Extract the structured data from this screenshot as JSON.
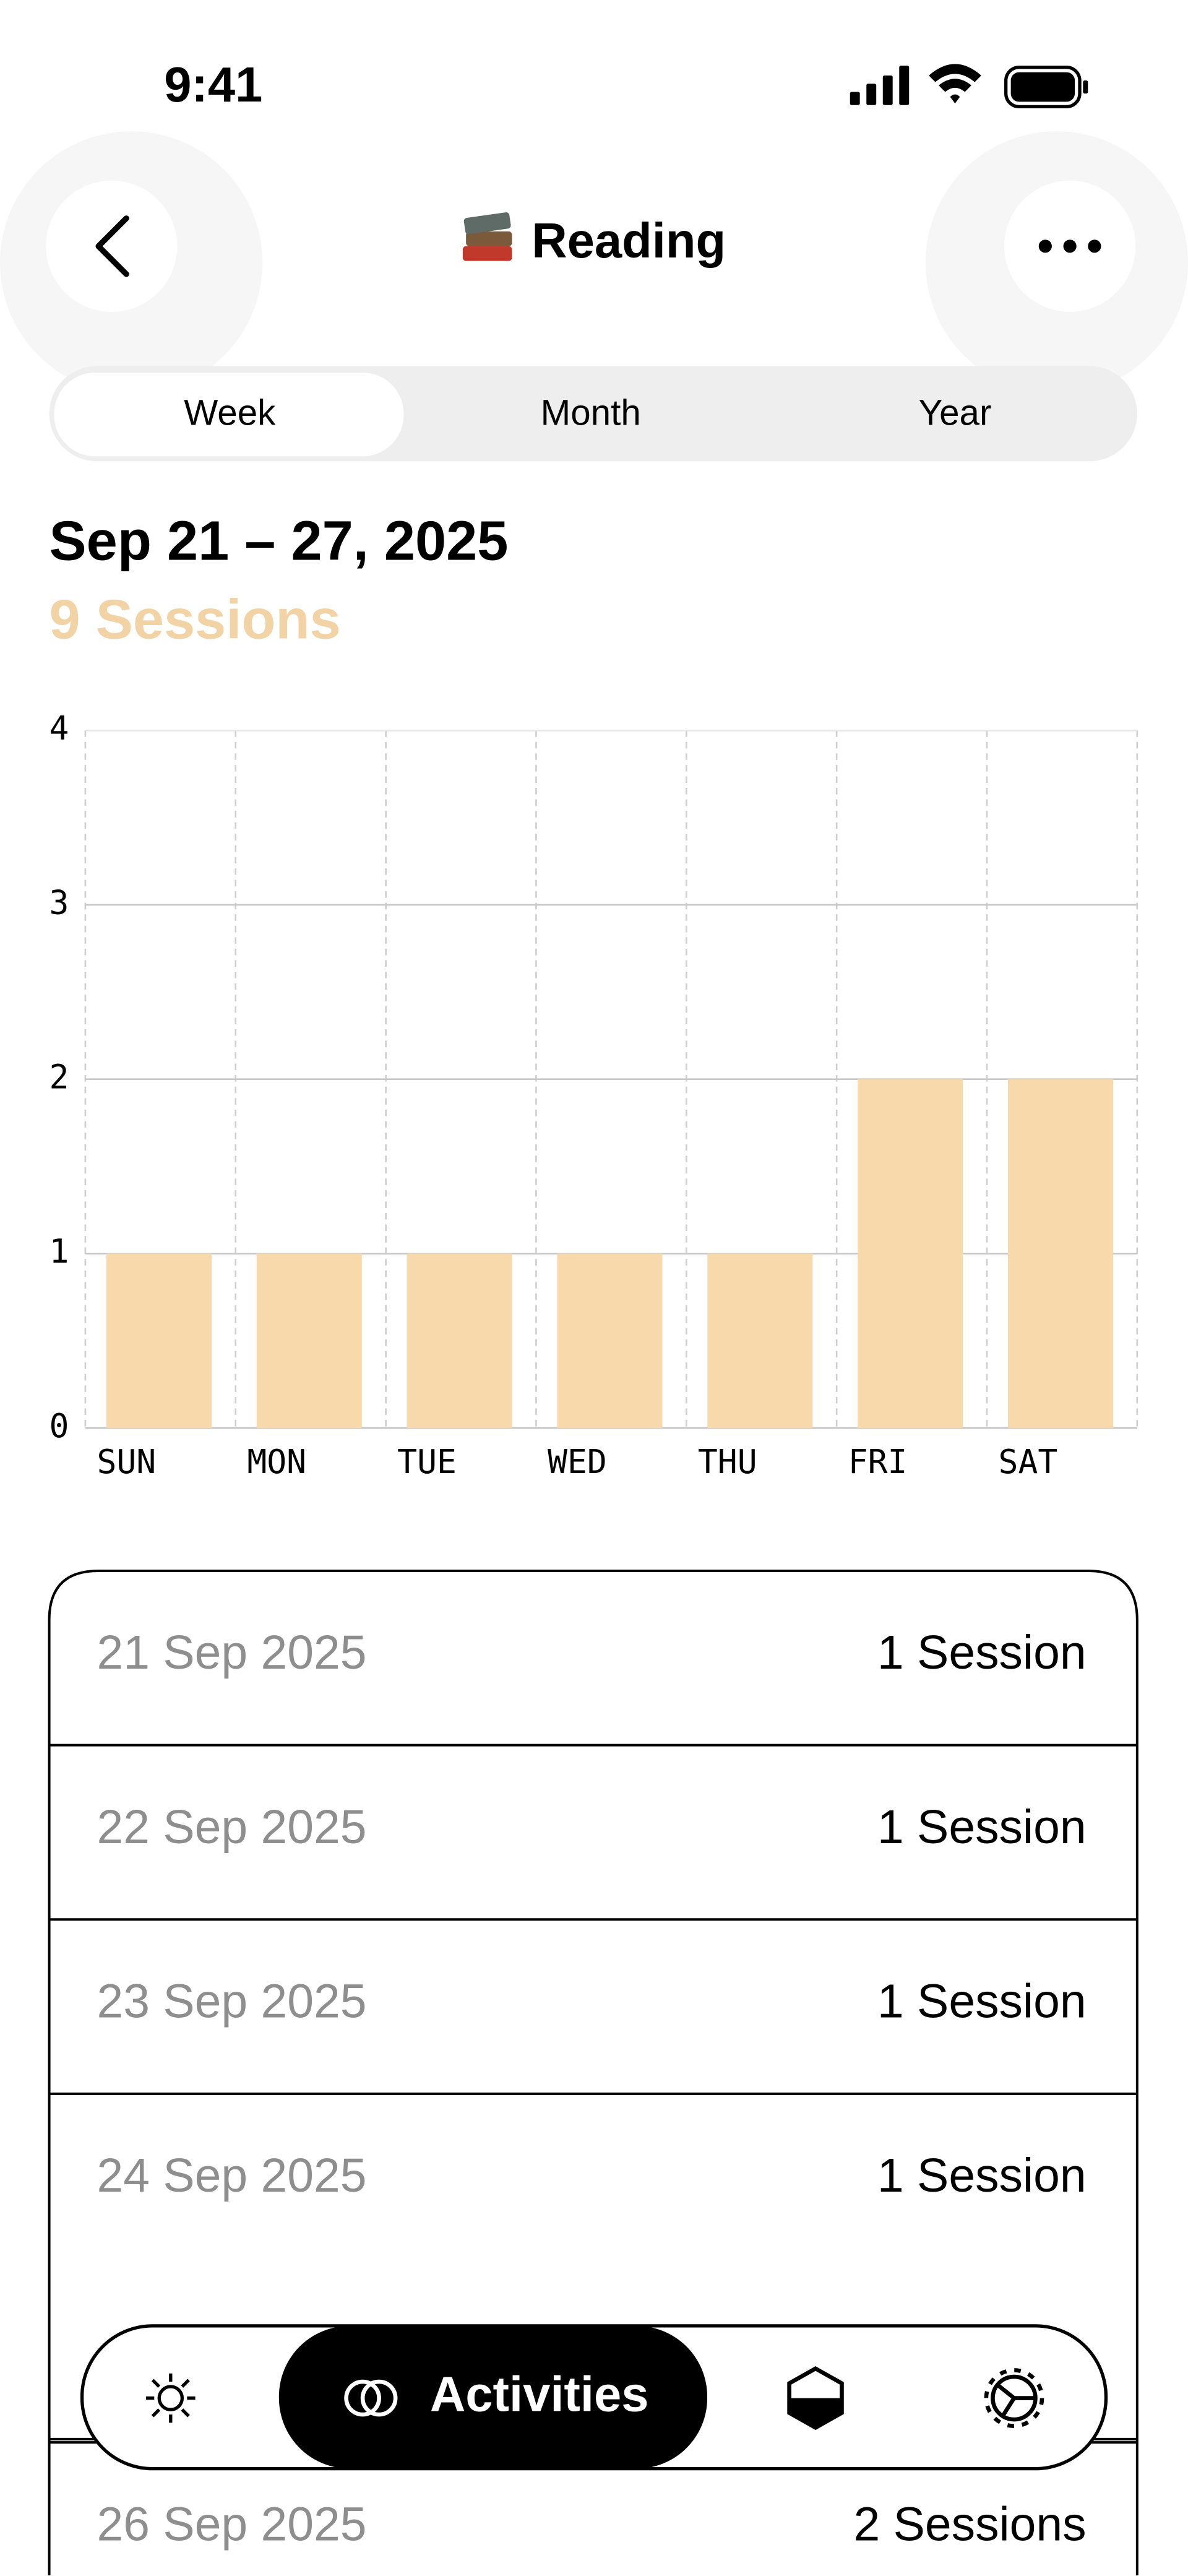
{
  "status_bar": {
    "time": "9:41"
  },
  "header": {
    "title": "Reading"
  },
  "tabs": [
    "Week",
    "Month",
    "Year"
  ],
  "summary": {
    "range": "Sep 21 – 27, 2025",
    "total": "9 Sessions"
  },
  "chart_data": {
    "type": "bar",
    "categories": [
      "SUN",
      "MON",
      "TUE",
      "WED",
      "THU",
      "FRI",
      "SAT"
    ],
    "values": [
      1,
      1,
      1,
      1,
      1,
      2,
      2
    ],
    "color": "#f7d9ab",
    "ylim": [
      0,
      4
    ],
    "yticks": [
      0,
      1,
      2,
      3,
      4
    ],
    "grid": true
  },
  "list": {
    "rows": [
      {
        "date": "21 Sep 2025",
        "sessions": "1 Session"
      },
      {
        "date": "22 Sep 2025",
        "sessions": "1 Session"
      },
      {
        "date": "23 Sep 2025",
        "sessions": "1 Session"
      },
      {
        "date": "24 Sep 2025",
        "sessions": "1 Session"
      },
      {
        "date": "26 Sep 2025",
        "sessions": "2 Sessions"
      }
    ]
  },
  "nav": {
    "active": "Activities"
  }
}
